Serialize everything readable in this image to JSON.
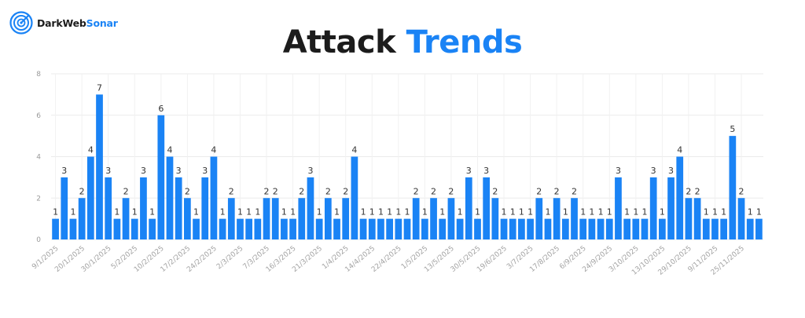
{
  "brand": {
    "name_part1": "DarkWeb",
    "name_part2": "Sonar",
    "icon": "radar-icon",
    "accent_color": "#1a83f5"
  },
  "title": {
    "part1": "Attack",
    "part2": "Trends"
  },
  "chart_data": {
    "type": "bar",
    "title": "Attack Trends",
    "xlabel": "",
    "ylabel": "",
    "ylim": [
      0,
      8
    ],
    "yticks": [
      0,
      2,
      4,
      6,
      8
    ],
    "grid": true,
    "legend": "none",
    "bar_color": "#1a83f5",
    "show_value_labels": true,
    "x_tick_labels": [
      {
        "index": 0,
        "label": "9/1/2025"
      },
      {
        "index": 3,
        "label": "20/1/2025"
      },
      {
        "index": 6,
        "label": "30/1/2025"
      },
      {
        "index": 9,
        "label": "5/2/2025"
      },
      {
        "index": 12,
        "label": "10/2/2025"
      },
      {
        "index": 15,
        "label": "17/2/2025"
      },
      {
        "index": 18,
        "label": "24/2/2025"
      },
      {
        "index": 21,
        "label": "2/3/2025"
      },
      {
        "index": 24,
        "label": "7/3/2025"
      },
      {
        "index": 27,
        "label": "16/3/2025"
      },
      {
        "index": 30,
        "label": "21/3/2025"
      },
      {
        "index": 33,
        "label": "1/4/2025"
      },
      {
        "index": 36,
        "label": "14/4/2025"
      },
      {
        "index": 39,
        "label": "22/4/2025"
      },
      {
        "index": 42,
        "label": "1/5/2025"
      },
      {
        "index": 45,
        "label": "13/5/2025"
      },
      {
        "index": 48,
        "label": "30/5/2025"
      },
      {
        "index": 51,
        "label": "19/6/2025"
      },
      {
        "index": 54,
        "label": "3/7/2025"
      },
      {
        "index": 57,
        "label": "17/8/2025"
      },
      {
        "index": 60,
        "label": "6/9/2025"
      },
      {
        "index": 63,
        "label": "24/9/2025"
      },
      {
        "index": 66,
        "label": "3/10/2025"
      },
      {
        "index": 69,
        "label": "13/10/2025"
      },
      {
        "index": 72,
        "label": "29/10/2025"
      },
      {
        "index": 75,
        "label": "9/11/2025"
      },
      {
        "index": 78,
        "label": "25/11/2025"
      }
    ],
    "values": [
      1,
      3,
      1,
      2,
      4,
      7,
      3,
      1,
      2,
      1,
      3,
      1,
      6,
      4,
      3,
      2,
      1,
      3,
      4,
      1,
      2,
      1,
      1,
      1,
      2,
      2,
      1,
      1,
      2,
      3,
      1,
      2,
      1,
      2,
      4,
      1,
      1,
      1,
      1,
      1,
      1,
      2,
      1,
      2,
      1,
      2,
      1,
      3,
      1,
      3,
      2,
      1,
      1,
      1,
      1,
      2,
      1,
      2,
      1,
      2,
      1,
      1,
      1,
      1,
      3,
      1,
      1,
      1,
      3,
      1,
      3,
      4,
      2,
      2,
      1,
      1,
      1,
      5,
      2,
      1,
      1
    ]
  }
}
